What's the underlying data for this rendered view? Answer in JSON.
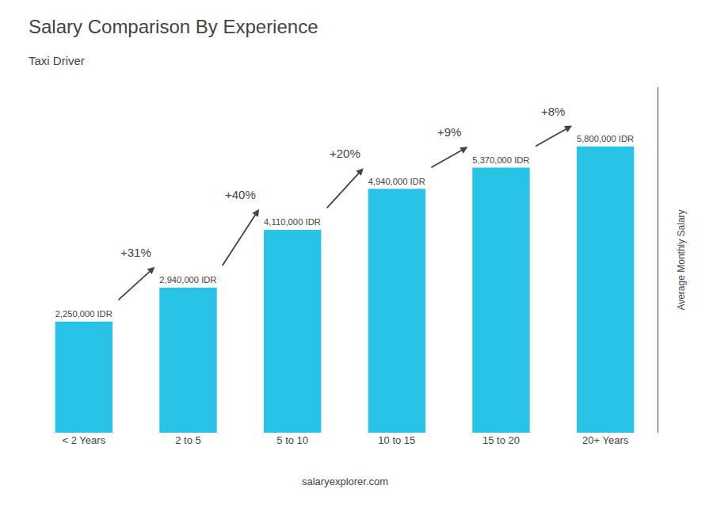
{
  "chart_data": {
    "type": "bar",
    "title": "Salary Comparison By Experience",
    "subtitle": "Taxi Driver",
    "ylabel": "Average Monthly Salary",
    "footer": "salaryexplorer.com",
    "categories": [
      "< 2 Years",
      "2 to 5",
      "5 to 10",
      "10 to 15",
      "15 to 20",
      "20+ Years"
    ],
    "values": [
      2250000,
      2940000,
      4110000,
      4940000,
      5370000,
      5800000
    ],
    "value_labels": [
      "2,250,000 IDR",
      "2,940,000 IDR",
      "4,110,000 IDR",
      "4,940,000 IDR",
      "5,370,000 IDR",
      "5,800,000 IDR"
    ],
    "data_labels": true,
    "annotations": [
      "+31%",
      "+40%",
      "+20%",
      "+9%",
      "+8%"
    ],
    "color": "#29c3e8",
    "ylim": [
      0,
      7000000
    ],
    "tick_labels": "x",
    "grid": false
  }
}
